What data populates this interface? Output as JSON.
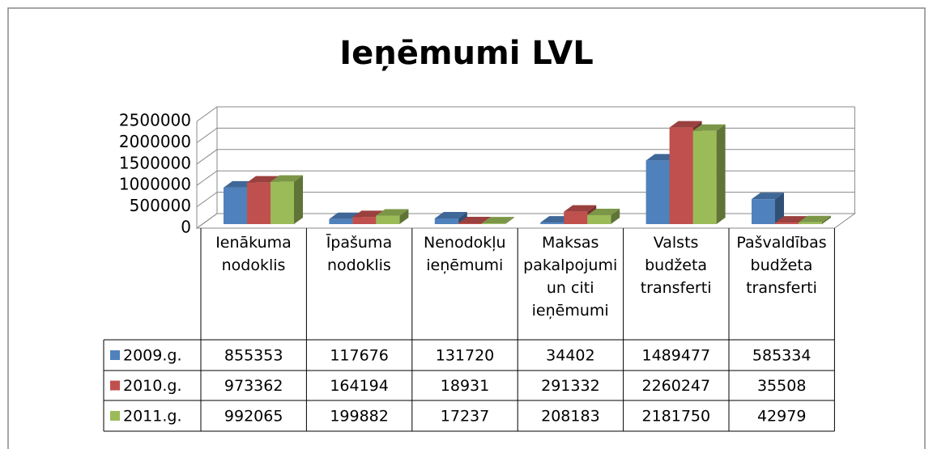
{
  "chart_data": {
    "type": "bar3d",
    "title": "Ieņēmumi LVL",
    "categories": [
      "Ienākuma nodoklis",
      "Īpašuma nodoklis",
      "Nenodokļu ieņēmumi",
      "Maksas pakalpojumi un citi ieņēmumi",
      "Valsts budžeta transferti",
      "Pašvaldības budžeta transferti"
    ],
    "series": [
      {
        "name": "2009.g.",
        "color": "#4f81bd",
        "values": [
          855353,
          117676,
          131720,
          34402,
          1489477,
          585334
        ]
      },
      {
        "name": "2010.g.",
        "color": "#c0504d",
        "values": [
          973362,
          164194,
          18931,
          291332,
          2260247,
          35508
        ]
      },
      {
        "name": "2011.g.",
        "color": "#9bbb59",
        "values": [
          992065,
          199882,
          17237,
          208183,
          2181750,
          42979
        ]
      }
    ],
    "ylim": [
      0,
      2500000
    ],
    "yticks": [
      0,
      500000,
      1000000,
      1500000,
      2000000,
      2500000
    ],
    "grid": true
  }
}
